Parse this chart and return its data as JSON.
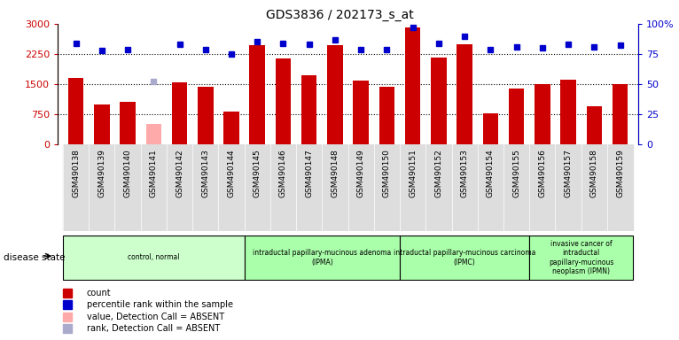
{
  "title": "GDS3836 / 202173_s_at",
  "samples": [
    "GSM490138",
    "GSM490139",
    "GSM490140",
    "GSM490141",
    "GSM490142",
    "GSM490143",
    "GSM490144",
    "GSM490145",
    "GSM490146",
    "GSM490147",
    "GSM490148",
    "GSM490149",
    "GSM490150",
    "GSM490151",
    "GSM490152",
    "GSM490153",
    "GSM490154",
    "GSM490155",
    "GSM490156",
    "GSM490157",
    "GSM490158",
    "GSM490159"
  ],
  "counts": [
    1650,
    1000,
    1050,
    500,
    1540,
    1440,
    820,
    2480,
    2140,
    1720,
    2480,
    1580,
    1430,
    2920,
    2170,
    2490,
    780,
    1380,
    1500,
    1600,
    960,
    1510
  ],
  "percentiles": [
    84,
    78,
    79,
    null,
    83,
    79,
    75,
    85,
    84,
    83,
    87,
    79,
    79,
    97,
    84,
    90,
    79,
    81,
    80,
    83,
    81,
    82
  ],
  "absent_mask": [
    false,
    false,
    false,
    true,
    false,
    false,
    false,
    false,
    false,
    false,
    false,
    false,
    false,
    false,
    false,
    false,
    false,
    false,
    false,
    false,
    false,
    false
  ],
  "absent_rank": [
    null,
    null,
    null,
    52,
    null,
    null,
    null,
    null,
    null,
    null,
    null,
    null,
    null,
    null,
    null,
    null,
    null,
    null,
    null,
    null,
    null,
    null
  ],
  "bar_color_normal": "#cc0000",
  "bar_color_absent": "#ffaaaa",
  "rank_color_normal": "#0000cc",
  "rank_color_absent": "#aaaacc",
  "ylim_left": [
    0,
    3000
  ],
  "ylim_right": [
    0,
    100
  ],
  "yticks_left": [
    0,
    750,
    1500,
    2250,
    3000
  ],
  "yticks_right": [
    0,
    25,
    50,
    75,
    100
  ],
  "ytick_labels_right": [
    "0",
    "25",
    "50",
    "75",
    "100%"
  ],
  "grid_vals": [
    750,
    1500,
    2250
  ],
  "groups": [
    {
      "label": "control, normal",
      "start": 0,
      "end": 7,
      "color": "#ccffcc"
    },
    {
      "label": "intraductal papillary-mucinous adenoma\n(IPMA)",
      "start": 7,
      "end": 13,
      "color": "#aaffaa"
    },
    {
      "label": "intraductal papillary-mucinous carcinoma\n(IPMC)",
      "start": 13,
      "end": 18,
      "color": "#aaffaa"
    },
    {
      "label": "invasive cancer of\nintraductal\npapillary-mucinous\nneoplasm (IPMN)",
      "start": 18,
      "end": 22,
      "color": "#aaffaa"
    }
  ],
  "legend_items": [
    {
      "label": "count",
      "color": "#cc0000"
    },
    {
      "label": "percentile rank within the sample",
      "color": "#0000cc"
    },
    {
      "label": "value, Detection Call = ABSENT",
      "color": "#ffaaaa"
    },
    {
      "label": "rank, Detection Call = ABSENT",
      "color": "#aaaacc"
    }
  ],
  "disease_state_label": "disease state",
  "bar_width": 0.6,
  "xtick_bg_color": "#dddddd"
}
